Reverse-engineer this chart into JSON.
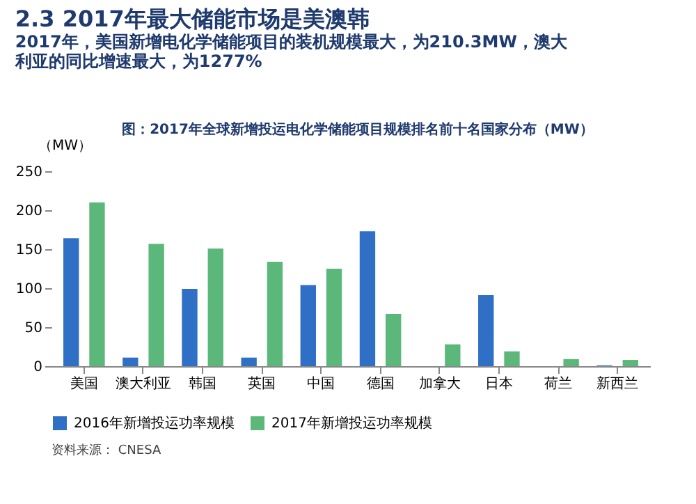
{
  "chart_data": {
    "type": "bar",
    "title": "2.3 2017年最大储能市场是美澳韩",
    "subtitle": "2017年，美国新增电化学储能项目的装机规模最大，为210.3MW，澳大利亚的同比增速最大，为1277%",
    "ylabel": "（MW）",
    "categories": [
      "美国",
      "澳大利亚",
      "韩国",
      "英国",
      "中国",
      "德国",
      "加拿大",
      "日本",
      "荷兰",
      "新西兰"
    ],
    "series": [
      {
        "name": "2016年新增投运功率规模",
        "color": "#2f6fc6",
        "values": [
          164,
          11,
          99,
          11,
          104,
          173,
          0,
          91,
          0,
          1
        ]
      },
      {
        "name": "2017年新增投运功率规模",
        "color": "#5cb87a",
        "values": [
          210,
          157,
          151,
          134,
          125,
          67,
          28,
          19,
          9,
          8
        ]
      }
    ],
    "ylim": [
      0,
      250
    ],
    "yticks": [
      0,
      50,
      100,
      150,
      200,
      250
    ],
    "grid": false,
    "legend": "bottom",
    "annotations": [
      "图：2017年全球新增投运电化学储能项目规模排名前十名国家分布（MW）",
      "资料来源： CNESA"
    ]
  }
}
